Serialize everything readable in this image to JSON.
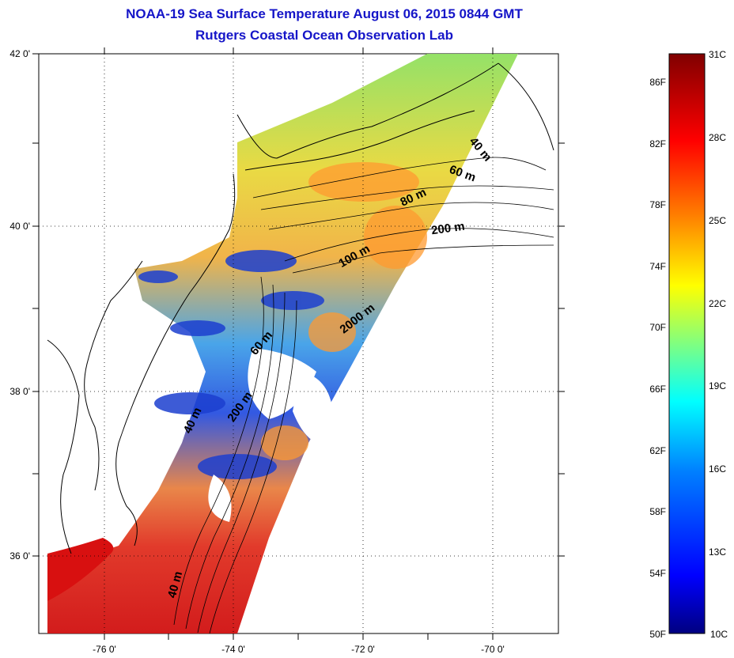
{
  "title": "NOAA-19 Sea Surface Temperature August 06, 2015 0844 GMT",
  "subtitle": "Rutgers Coastal Ocean Observation Lab",
  "map": {
    "lon_labels": [
      "-76 0'",
      "-74 0'",
      "-72 0'",
      "-70 0'"
    ],
    "lat_labels": [
      "42 0'",
      "40 0'",
      "38 0'",
      "36 0'"
    ],
    "extent": {
      "lon_min": -77.0,
      "lon_max": -69.0,
      "lat_min": 35.0,
      "lat_max": 42.0
    },
    "depth_contours": [
      {
        "label": "40 m"
      },
      {
        "label": "60 m"
      },
      {
        "label": "80 m"
      },
      {
        "label": "200 m"
      },
      {
        "label": "100 m"
      },
      {
        "label": "2000 m"
      },
      {
        "label": "60 m"
      },
      {
        "label": "200 m"
      },
      {
        "label": "40 m"
      },
      {
        "label": "40 m"
      }
    ]
  },
  "colorbar": {
    "range_c": [
      10,
      31
    ],
    "celsius_labels": [
      "31C",
      "28C",
      "25C",
      "22C",
      "19C",
      "16C",
      "13C",
      "10C"
    ],
    "fahrenheit_labels": [
      "86F",
      "82F",
      "78F",
      "74F",
      "70F",
      "66F",
      "62F",
      "58F",
      "54F",
      "50F"
    ],
    "colors": [
      "#000080",
      "#0000ff",
      "#0080ff",
      "#00ffff",
      "#80ff80",
      "#ffff00",
      "#ff8000",
      "#ff0000",
      "#800000"
    ]
  }
}
